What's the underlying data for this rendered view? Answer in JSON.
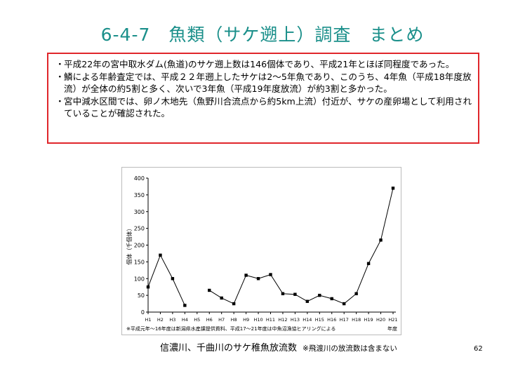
{
  "slide": {
    "title": "6-4-7　魚類（サケ遡上）調査　まとめ",
    "bullets": [
      "平成22年の宮中取水ダム(魚道)のサケ遡上数は146個体であり、平成21年とほぼ同程度であった。",
      "鱗による年齢査定では、平成２２年遡上したサケは2～5年魚であり、このうち、4年魚（平成18年度放流）が全体の約5割と多く、次いで3年魚（平成19年度放流）が約3割と多かった。",
      "宮中減水区間では、卵ノ木地先（魚野川合流点から約5km上流）付近が、サケの産卵場として利用されていることが確認された。"
    ],
    "bullet_mark": "・",
    "caption": "信濃川、千曲川のサケ稚魚放流数",
    "caption_note": "※飛渡川の放流数は含まない",
    "page_number": "62"
  },
  "chart_data": {
    "type": "line",
    "title": "",
    "ylabel": "個体（千個体）",
    "xlabel": "年度",
    "ylim": [
      0,
      400
    ],
    "yticks": [
      0,
      50,
      100,
      150,
      200,
      250,
      300,
      350,
      400
    ],
    "grid": false,
    "categories": [
      "H1",
      "H2",
      "H3",
      "H4",
      "H5",
      "H6",
      "H7",
      "H8",
      "H9",
      "H10",
      "H11",
      "H12",
      "H13",
      "H14",
      "H15",
      "H16",
      "H17",
      "H18",
      "H19",
      "H20",
      "H21"
    ],
    "series": [
      {
        "values": [
          75,
          170,
          100,
          20,
          null,
          65,
          42,
          25,
          110,
          100,
          112,
          55,
          53,
          32,
          50,
          40,
          25,
          55,
          145,
          215,
          370
        ]
      }
    ],
    "source_note": "※平成元年～16年度は新潟県水産課提供資料、平成17～21年度は中魚沼漁協ヒアリングによる",
    "colors": {
      "line": "#000000",
      "marker": "#000000",
      "axis": "#000000"
    }
  }
}
